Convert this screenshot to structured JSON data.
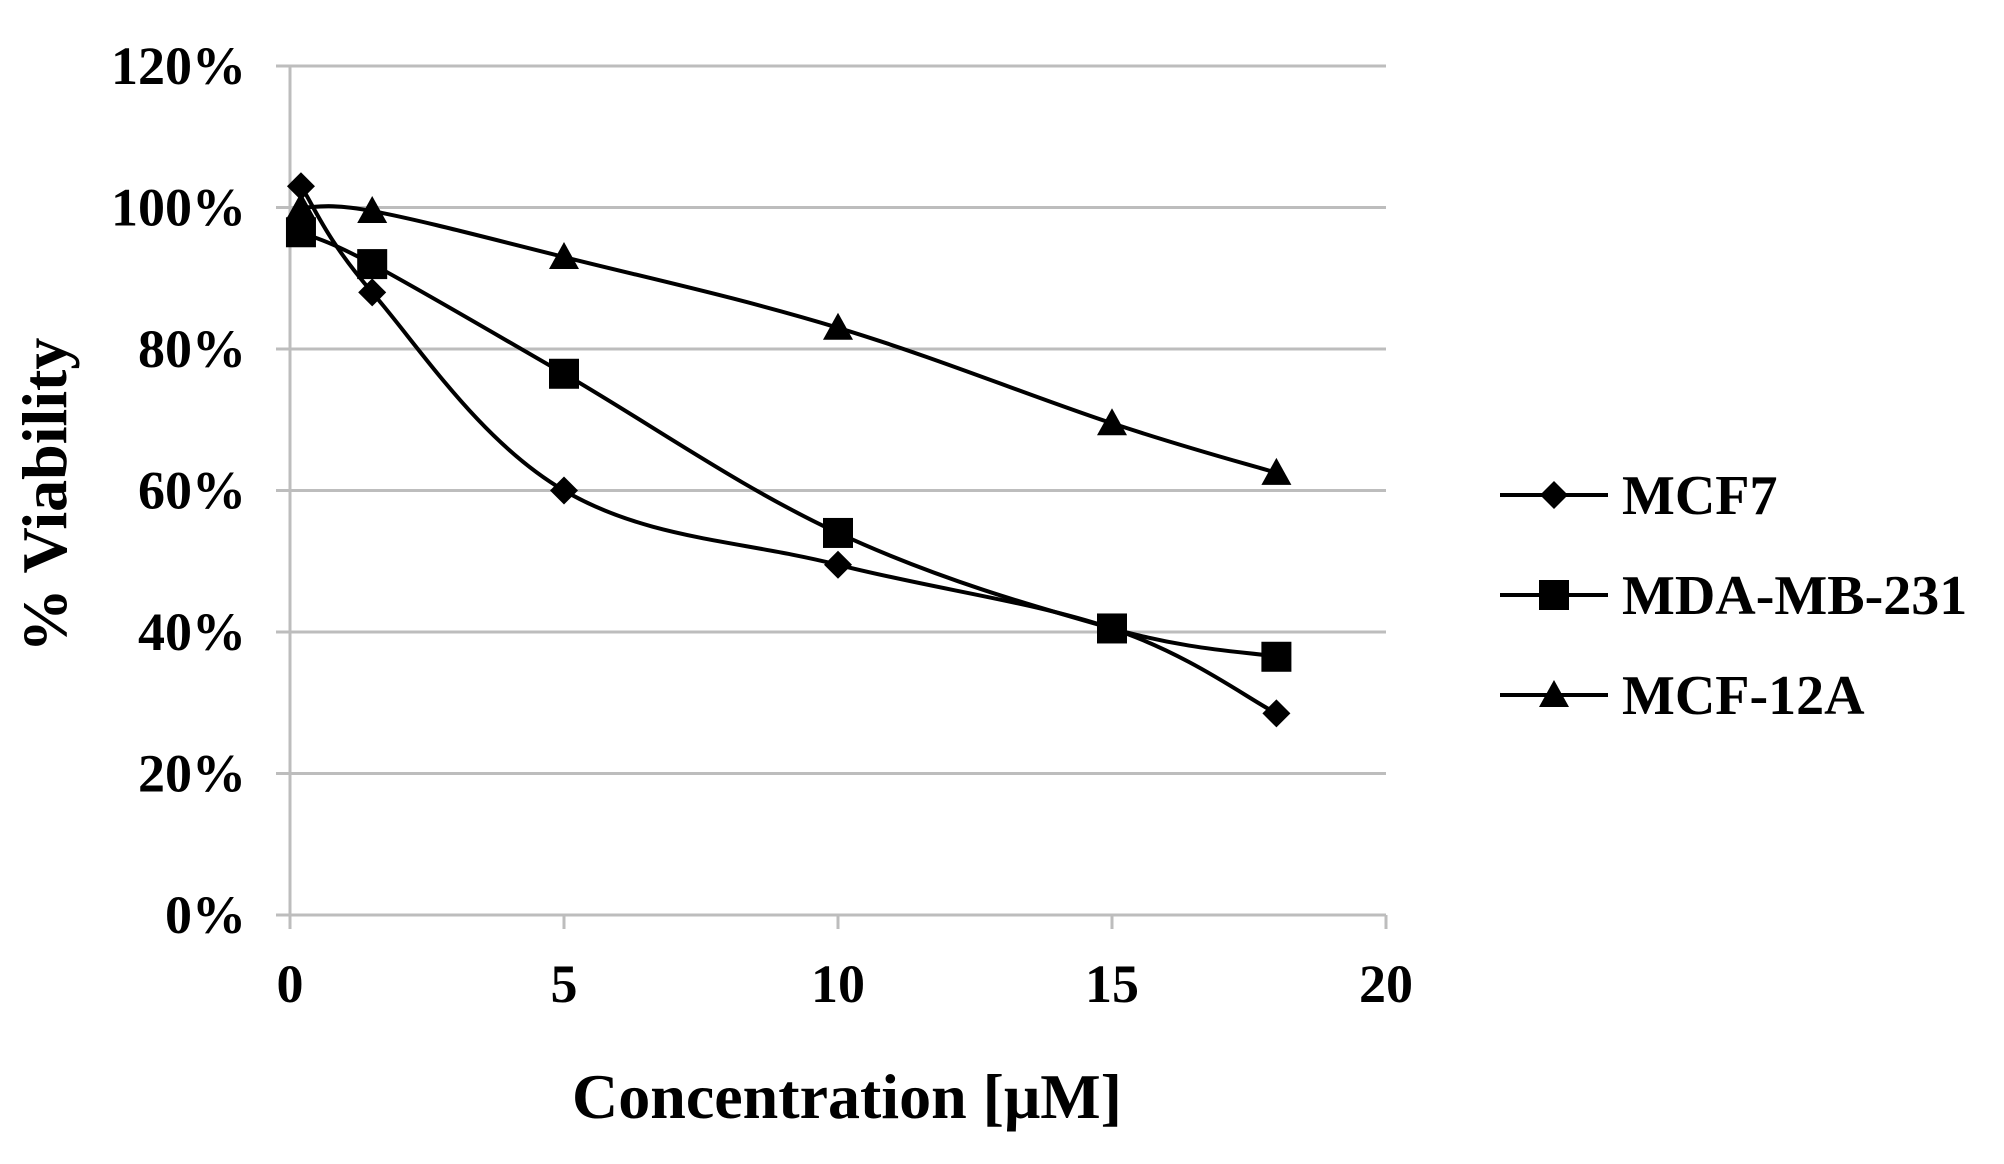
{
  "chart_data": {
    "type": "line",
    "title": "",
    "xlabel": "Concentration [μM]",
    "ylabel": "% Viability",
    "xlim": [
      0,
      20
    ],
    "ylim": [
      0,
      120
    ],
    "x_ticks": [
      0,
      5,
      10,
      15,
      20
    ],
    "x_tick_labels": [
      "0",
      "5",
      "10",
      "15",
      "20"
    ],
    "y_ticks": [
      0,
      20,
      40,
      60,
      80,
      100,
      120
    ],
    "y_tick_labels": [
      "0%",
      "20%",
      "40%",
      "60%",
      "80%",
      "100%",
      "120%"
    ],
    "grid": "horizontal",
    "legend_position": "right",
    "series": [
      {
        "name": "MCF7",
        "marker": "diamond",
        "x": [
          0.2,
          1.5,
          5,
          10,
          15,
          18
        ],
        "values": [
          103,
          88,
          60,
          49.5,
          40.5,
          28.5
        ]
      },
      {
        "name": "MDA-MB-231",
        "marker": "square",
        "x": [
          0.2,
          1.5,
          5,
          10,
          15,
          18
        ],
        "values": [
          96.5,
          92,
          76.5,
          54,
          40.5,
          36.5
        ]
      },
      {
        "name": "MCF-12A",
        "marker": "triangle",
        "x": [
          0.2,
          1.5,
          5,
          10,
          15,
          18
        ],
        "values": [
          100,
          99.5,
          93,
          83,
          69.5,
          62.5
        ]
      }
    ]
  }
}
